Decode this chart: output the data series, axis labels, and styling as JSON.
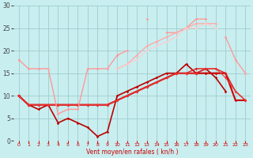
{
  "xlabel": "Vent moyen/en rafales ( kn/h )",
  "bg_color": "#c8eef0",
  "grid_color": "#a0cccc",
  "xlim": [
    -0.5,
    23.5
  ],
  "ylim": [
    0,
    30
  ],
  "yticks": [
    0,
    5,
    10,
    15,
    20,
    25,
    30
  ],
  "xticks": [
    0,
    1,
    2,
    3,
    4,
    5,
    6,
    7,
    8,
    9,
    10,
    11,
    12,
    13,
    14,
    15,
    16,
    17,
    18,
    19,
    20,
    21,
    22,
    23
  ],
  "lines": [
    {
      "x": [
        0,
        1,
        2,
        3,
        4,
        5,
        6,
        7,
        8,
        9,
        10,
        11,
        12,
        13,
        14,
        15,
        16,
        17,
        18,
        19,
        20,
        21,
        22,
        23
      ],
      "y": [
        10,
        8,
        7,
        8,
        4,
        5,
        4,
        3,
        1,
        2,
        10,
        11,
        12,
        13,
        14,
        15,
        15,
        17,
        15,
        16,
        14,
        11,
        null,
        null
      ],
      "color": "#bb0000",
      "lw": 1.2,
      "marker": "D",
      "ms": 1.8
    },
    {
      "x": [
        0,
        1,
        2,
        3,
        4,
        5,
        6,
        7,
        8,
        9,
        10,
        11,
        12,
        13,
        14,
        15,
        16,
        17,
        18,
        19,
        20,
        21,
        22,
        23
      ],
      "y": [
        10,
        8,
        8,
        8,
        8,
        8,
        8,
        8,
        8,
        8,
        9,
        10,
        11,
        12,
        13,
        14,
        15,
        15,
        15,
        15,
        15,
        15,
        9,
        9
      ],
      "color": "#cc0000",
      "lw": 1.5,
      "marker": "D",
      "ms": 1.8
    },
    {
      "x": [
        0,
        1,
        2,
        3,
        4,
        5,
        6,
        7,
        8,
        9,
        10,
        11,
        12,
        13,
        14,
        15,
        16,
        17,
        18,
        19,
        20,
        21,
        22,
        23
      ],
      "y": [
        10,
        8,
        8,
        8,
        8,
        8,
        8,
        8,
        8,
        8,
        9,
        10,
        11,
        12,
        13,
        14,
        15,
        15,
        16,
        16,
        16,
        15,
        11,
        9
      ],
      "color": "#dd2222",
      "lw": 1.0,
      "marker": "D",
      "ms": 1.8
    },
    {
      "x": [
        0,
        1,
        2,
        3,
        4,
        5,
        6,
        7,
        8,
        9,
        10,
        11,
        12,
        13,
        14,
        15,
        16,
        17,
        18,
        19,
        20,
        21,
        22,
        23
      ],
      "y": [
        10,
        8,
        8,
        8,
        8,
        8,
        8,
        8,
        8,
        8,
        9,
        10,
        11,
        12,
        13,
        14,
        15,
        15,
        15,
        16,
        16,
        14,
        11,
        9
      ],
      "color": "#ee3333",
      "lw": 0.8,
      "marker": "D",
      "ms": 1.5
    },
    {
      "x": [
        0,
        1,
        2,
        3,
        4,
        5,
        6,
        7,
        8,
        9,
        10,
        11,
        12,
        13,
        14,
        15,
        16,
        17,
        18,
        19,
        20,
        21,
        22,
        23
      ],
      "y": [
        18,
        16,
        16,
        16,
        6,
        7,
        7,
        16,
        16,
        16,
        19,
        20,
        null,
        27,
        null,
        24,
        24,
        25,
        27,
        27,
        null,
        23,
        18,
        15
      ],
      "color": "#ff9999",
      "lw": 1.0,
      "marker": "D",
      "ms": 1.8
    },
    {
      "x": [
        0,
        1,
        2,
        3,
        4,
        5,
        6,
        7,
        8,
        9,
        10,
        11,
        12,
        13,
        14,
        15,
        16,
        17,
        18,
        19,
        20,
        21,
        22,
        23
      ],
      "y": [
        null,
        null,
        null,
        16,
        null,
        null,
        null,
        null,
        null,
        null,
        16,
        17,
        19,
        21,
        22,
        23,
        24,
        25,
        26,
        26,
        26,
        null,
        null,
        15
      ],
      "color": "#ffaaaa",
      "lw": 1.0,
      "marker": "D",
      "ms": 1.8
    },
    {
      "x": [
        0,
        1,
        2,
        3,
        4,
        5,
        6,
        7,
        8,
        9,
        10,
        11,
        12,
        13,
        14,
        15,
        16,
        17,
        18,
        19,
        20,
        21,
        22,
        23
      ],
      "y": [
        null,
        null,
        null,
        null,
        null,
        null,
        null,
        null,
        null,
        null,
        16,
        17,
        18,
        20,
        21,
        22,
        23,
        25,
        25,
        26,
        25,
        null,
        null,
        null
      ],
      "color": "#ffcccc",
      "lw": 0.8,
      "marker": "D",
      "ms": 1.5
    }
  ]
}
